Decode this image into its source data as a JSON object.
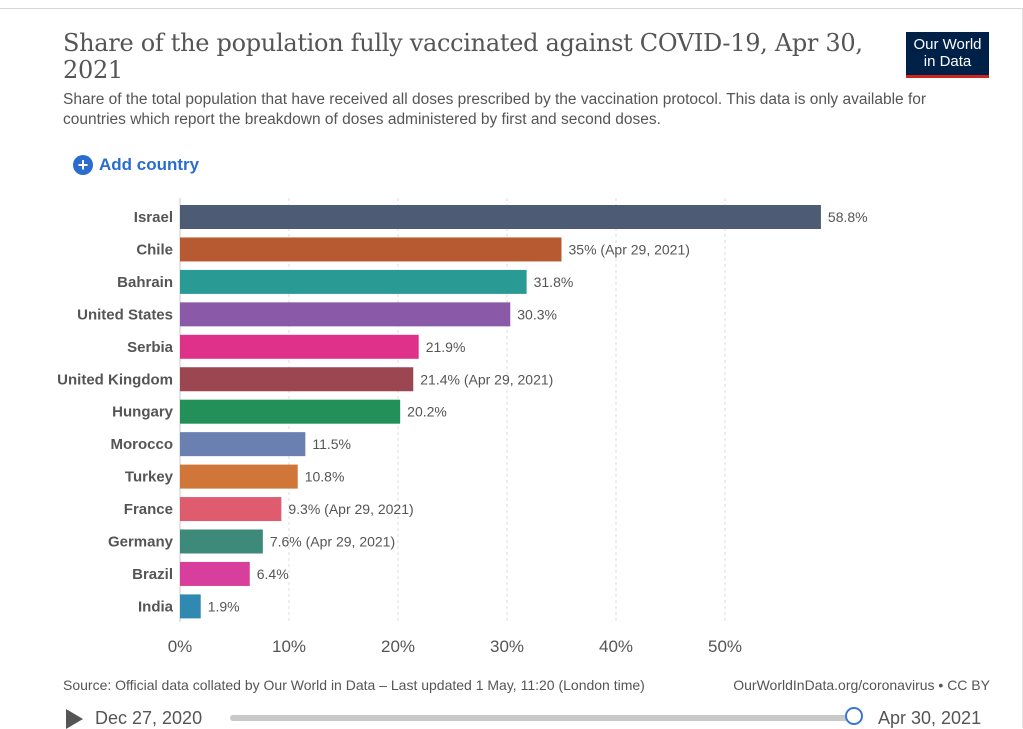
{
  "header": {
    "title": "Share of the population fully vaccinated against COVID-19, Apr 30, 2021",
    "subtitle": "Share of the total population that have received all doses prescribed by the vaccination protocol. This data is only available for countries which report the breakdown of doses administered by first and second doses.",
    "logo_line1": "Our World",
    "logo_line2": "in Data",
    "logo_bg_color": "#002147",
    "logo_accent_color": "#ce261e"
  },
  "controls": {
    "add_country_label": "Add country",
    "add_icon": "plus-circle-icon"
  },
  "chart_data": {
    "type": "bar",
    "orientation": "horizontal",
    "categories": [
      "Israel",
      "Chile",
      "Bahrain",
      "United States",
      "Serbia",
      "United Kingdom",
      "Hungary",
      "Morocco",
      "Turkey",
      "France",
      "Germany",
      "Brazil",
      "India"
    ],
    "values": [
      58.8,
      35,
      31.8,
      30.3,
      21.9,
      21.4,
      20.2,
      11.5,
      10.8,
      9.3,
      7.6,
      6.4,
      1.9
    ],
    "labels": [
      "58.8%",
      "35% (Apr 29, 2021)",
      "31.8%",
      "30.3%",
      "21.9%",
      "21.4% (Apr 29, 2021)",
      "20.2%",
      "11.5%",
      "10.8%",
      "9.3% (Apr 29, 2021)",
      "7.6% (Apr 29, 2021)",
      "6.4%",
      "1.9%"
    ],
    "colors": [
      "#4d5b74",
      "#b85a31",
      "#2a9a94",
      "#8a5aa8",
      "#e0318a",
      "#9c4651",
      "#23905a",
      "#6a80b0",
      "#cf7638",
      "#de5c6e",
      "#3d8a7a",
      "#d83f9c",
      "#2f89b0"
    ],
    "xlim": [
      0,
      58.8
    ],
    "xticks": [
      0,
      10,
      20,
      30,
      40,
      50
    ],
    "xtick_labels": [
      "0%",
      "10%",
      "20%",
      "30%",
      "40%",
      "50%"
    ],
    "grid": "vertical dashed",
    "title": "Share of the population fully vaccinated against COVID-19, Apr 30, 2021",
    "xlabel": "",
    "ylabel": ""
  },
  "footer": {
    "source": "Source: Official data collated by Our World in Data – Last updated 1 May, 11:20 (London time)",
    "url": "OurWorldInData.org/coronavirus • CC BY"
  },
  "timeline": {
    "start_label": "Dec 27, 2020",
    "end_label": "Apr 30, 2021",
    "play_icon": "play-icon",
    "position": 1.0
  }
}
